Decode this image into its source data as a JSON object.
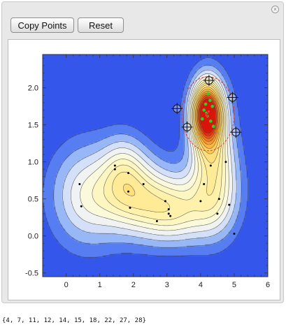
{
  "toolbar": {
    "copy_points_label": "Copy Points",
    "reset_label": "Reset",
    "close_glyph": "×"
  },
  "output_text": "{4, 7, 11, 12, 14, 15, 18, 22, 27, 28}",
  "chart_data": {
    "type": "contour",
    "xlim": [
      -0.7,
      6.0
    ],
    "ylim": [
      -0.55,
      2.45
    ],
    "x_ticks": [
      0,
      1,
      2,
      3,
      4,
      5,
      6
    ],
    "y_ticks": [
      -0.5,
      0.0,
      0.5,
      1.0,
      1.5,
      2.0
    ],
    "x_tick_labels": [
      "0",
      "1",
      "2",
      "3",
      "4",
      "5",
      "6"
    ],
    "y_tick_labels": [
      "-0.5",
      "0.0",
      "0.5",
      "1.0",
      "1.5",
      "2.0"
    ],
    "black_points": [
      [
        0.4,
        0.7
      ],
      [
        0.45,
        0.4
      ],
      [
        1.45,
        0.95
      ],
      [
        1.45,
        0.9
      ],
      [
        1.85,
        0.85
      ],
      [
        1.85,
        0.6
      ],
      [
        1.9,
        0.38
      ],
      [
        2.3,
        0.7
      ],
      [
        2.7,
        0.2
      ],
      [
        2.95,
        0.47
      ],
      [
        3.05,
        0.3
      ],
      [
        3.05,
        0.36
      ],
      [
        3.1,
        0.27
      ],
      [
        4.0,
        0.47
      ],
      [
        4.1,
        0.7
      ],
      [
        4.3,
        0.95
      ],
      [
        4.5,
        0.3
      ],
      [
        4.55,
        0.5
      ],
      [
        4.75,
        1.0
      ],
      [
        4.85,
        0.42
      ],
      [
        5.0,
        0.03
      ]
    ],
    "green_points": [
      [
        4.22,
        1.92
      ],
      [
        4.28,
        1.83
      ],
      [
        4.15,
        1.78
      ],
      [
        4.1,
        1.7
      ],
      [
        4.35,
        1.75
      ],
      [
        4.2,
        1.62
      ],
      [
        4.3,
        1.55
      ],
      [
        4.05,
        1.58
      ],
      [
        4.18,
        1.66
      ],
      [
        4.38,
        1.48
      ]
    ],
    "red_points": [
      [
        4.17,
        1.63
      ],
      [
        4.24,
        1.68
      ]
    ],
    "selection_markers": [
      [
        4.25,
        2.1
      ],
      [
        4.95,
        1.87
      ],
      [
        5.05,
        1.4
      ],
      [
        3.3,
        1.72
      ],
      [
        3.6,
        1.47
      ]
    ]
  },
  "colors": {
    "background_field": "#2a46e8",
    "peak": "#e01010",
    "ridge": "#fff7cc",
    "green_point": "#2bd12b",
    "ellipse": "#e23a3a"
  }
}
